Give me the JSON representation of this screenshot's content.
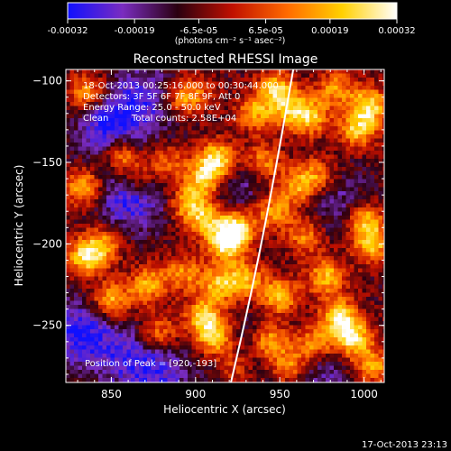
{
  "chart_data": {
    "type": "heatmap",
    "title": "Reconstructed RHESSI Image",
    "xlabel": "Heliocentric X (arcsec)",
    "ylabel": "Heliocentric Y (arcsec)",
    "xlim": [
      823,
      1012
    ],
    "ylim": [
      -285,
      -93
    ],
    "x_ticks": [
      850,
      900,
      950,
      1000
    ],
    "y_ticks": [
      -100,
      -150,
      -200,
      -250
    ],
    "x_tick_labels": [
      "850",
      "900",
      "950",
      "1000"
    ],
    "y_tick_labels": [
      "-100",
      "-150",
      "-200",
      "-250"
    ],
    "colorbar": {
      "min": -0.00032,
      "max": 0.00032,
      "tick_values": [
        -0.00032,
        -0.00019,
        -6.5e-05,
        6.5e-05,
        0.00019,
        0.00032
      ],
      "tick_labels": [
        "-0.00032",
        "-0.00019",
        "-6.5e-05",
        "6.5e-05",
        "0.00019",
        "0.00032"
      ],
      "unit_label": "(photons cm⁻² s⁻¹ asec⁻²)",
      "colormap": [
        "#1010ff",
        "#7a2cc0",
        "#2a0010",
        "#c01000",
        "#ff6a00",
        "#ffd000",
        "#ffffff"
      ]
    },
    "annotations": {
      "time_range": "18-Oct-2013 00:25:16.000 to 00:30:44.000",
      "detectors": "Detectors: 3F 5F 6F 7F 8F 9F, Att 0",
      "energy_range": "Energy Range: 25.0 - 50.0 keV",
      "algorithm": "Clean",
      "total_counts": "Total counts: 2.58E+04",
      "peak_position": "Position of Peak = [920,-193]"
    },
    "peak": {
      "x": 920,
      "y": -193
    },
    "limb_curve": {
      "points": [
        [
          958,
          -93
        ],
        [
          950,
          -140
        ],
        [
          941,
          -190
        ],
        [
          931,
          -240
        ],
        [
          921,
          -285
        ]
      ]
    },
    "blobs": [
      {
        "x": 835,
        "y": -107,
        "v": 0.7
      },
      {
        "x": 833,
        "y": -165,
        "v": 0.8
      },
      {
        "x": 835,
        "y": -208,
        "v": 0.9
      },
      {
        "x": 845,
        "y": -200,
        "v": 0.6
      },
      {
        "x": 850,
        "y": -235,
        "v": 0.8
      },
      {
        "x": 856,
        "y": -145,
        "v": 0.85
      },
      {
        "x": 866,
        "y": -160,
        "v": 0.5
      },
      {
        "x": 872,
        "y": -225,
        "v": 0.7
      },
      {
        "x": 878,
        "y": -255,
        "v": 0.6
      },
      {
        "x": 883,
        "y": -150,
        "v": 0.5
      },
      {
        "x": 890,
        "y": -110,
        "v": 0.5
      },
      {
        "x": 900,
        "y": -108,
        "v": 0.45
      },
      {
        "x": 896,
        "y": -175,
        "v": 0.7
      },
      {
        "x": 905,
        "y": -160,
        "v": 0.85
      },
      {
        "x": 913,
        "y": -148,
        "v": 1.0
      },
      {
        "x": 906,
        "y": -185,
        "v": 0.7
      },
      {
        "x": 918,
        "y": -200,
        "v": 0.9
      },
      {
        "x": 924,
        "y": -190,
        "v": 1.0
      },
      {
        "x": 914,
        "y": -225,
        "v": 0.75
      },
      {
        "x": 930,
        "y": -222,
        "v": 0.7
      },
      {
        "x": 893,
        "y": -218,
        "v": 0.6
      },
      {
        "x": 905,
        "y": -245,
        "v": 0.85
      },
      {
        "x": 912,
        "y": -258,
        "v": 0.8
      },
      {
        "x": 935,
        "y": -120,
        "v": 0.65
      },
      {
        "x": 940,
        "y": -150,
        "v": 0.65
      },
      {
        "x": 948,
        "y": -105,
        "v": 0.8
      },
      {
        "x": 946,
        "y": -180,
        "v": 0.7
      },
      {
        "x": 955,
        "y": -118,
        "v": 0.6
      },
      {
        "x": 968,
        "y": -122,
        "v": 0.8
      },
      {
        "x": 960,
        "y": -165,
        "v": 0.65
      },
      {
        "x": 972,
        "y": -158,
        "v": 0.6
      },
      {
        "x": 965,
        "y": -195,
        "v": 0.6
      },
      {
        "x": 950,
        "y": -232,
        "v": 0.8
      },
      {
        "x": 944,
        "y": -260,
        "v": 0.9
      },
      {
        "x": 955,
        "y": -275,
        "v": 0.7
      },
      {
        "x": 970,
        "y": -262,
        "v": 0.7
      },
      {
        "x": 978,
        "y": -220,
        "v": 0.8
      },
      {
        "x": 985,
        "y": -245,
        "v": 0.9
      },
      {
        "x": 993,
        "y": -258,
        "v": 0.95
      },
      {
        "x": 996,
        "y": -130,
        "v": 0.8
      },
      {
        "x": 1003,
        "y": -115,
        "v": 0.9
      },
      {
        "x": 1000,
        "y": -185,
        "v": 0.8
      },
      {
        "x": 1005,
        "y": -200,
        "v": 0.8
      },
      {
        "x": 1005,
        "y": -275,
        "v": 0.7
      },
      {
        "x": 983,
        "y": -105,
        "v": 0.6
      },
      {
        "x": 925,
        "y": -275,
        "v": 0.5
      }
    ],
    "negatives": [
      {
        "x": 850,
        "y": -130,
        "v": 1.0
      },
      {
        "x": 862,
        "y": -172,
        "v": 0.9
      },
      {
        "x": 832,
        "y": -255,
        "v": 0.9
      },
      {
        "x": 860,
        "y": -270,
        "v": 0.6
      },
      {
        "x": 870,
        "y": -110,
        "v": 0.7
      },
      {
        "x": 880,
        "y": -280,
        "v": 0.6
      },
      {
        "x": 935,
        "y": -265,
        "v": 0.5
      },
      {
        "x": 975,
        "y": -280,
        "v": 0.5
      },
      {
        "x": 985,
        "y": -175,
        "v": 0.5
      },
      {
        "x": 925,
        "y": -165,
        "v": 0.5
      }
    ]
  },
  "footer": {
    "timestamp": "17-Oct-2013 23:13"
  }
}
